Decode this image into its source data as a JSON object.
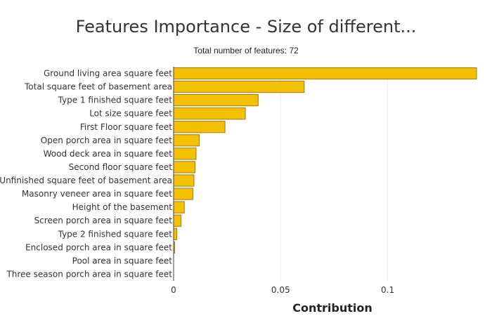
{
  "chart_data": {
    "type": "bar",
    "orientation": "horizontal",
    "title": "Features Importance - Size of different...",
    "subtitle": "Total number of features: 72",
    "xlabel": "Contribution",
    "ylabel": "",
    "xlim": [
      0,
      0.1415
    ],
    "xticks": [
      0,
      0.05,
      0.1
    ],
    "xtick_labels": [
      "0",
      "0.05",
      "0.1"
    ],
    "grid": true,
    "bar_color": "#f5c000",
    "bar_edge_color": "#9a7c16",
    "categories": [
      "Ground living area square feet",
      "Total square feet of basement area",
      "Type 1 finished square feet",
      "Lot size square feet",
      "First Floor square feet",
      "Open porch area in square feet",
      "Wood deck area in square feet",
      "Second floor square feet",
      "Unfinished square feet of basement area",
      "Masonry veneer area in square feet",
      "Height of the basement",
      "Screen porch area in square feet",
      "Type 2 finished square feet",
      "Enclosed porch area in square feet",
      "Pool area in square feet",
      "Three season porch area in square feet"
    ],
    "values": [
      0.1415,
      0.061,
      0.0395,
      0.0335,
      0.024,
      0.012,
      0.0105,
      0.01,
      0.0095,
      0.009,
      0.005,
      0.0035,
      0.0015,
      0.0005,
      0.0,
      0.0
    ]
  }
}
